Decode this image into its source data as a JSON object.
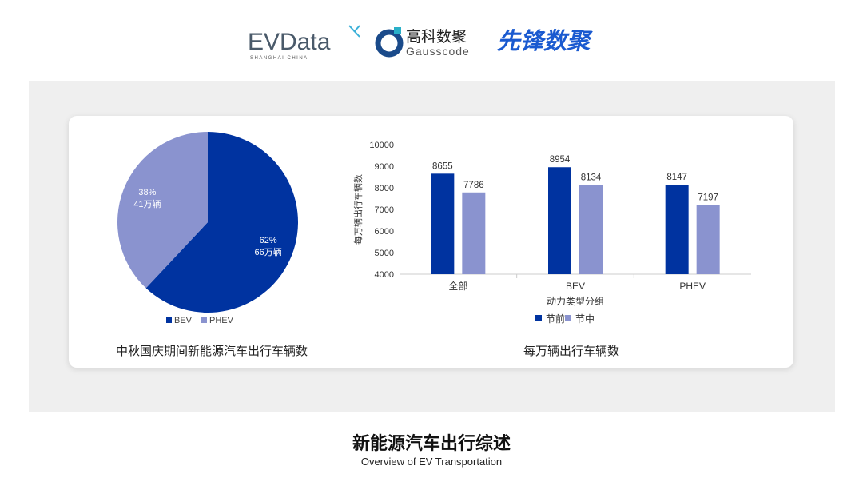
{
  "logos": {
    "evdata": "EVData",
    "evdata_sub": "SHANGHAI CHINA",
    "gauss_cn": "高科数聚",
    "gauss_en": "Gausscode",
    "xianfeng": "先锋数聚"
  },
  "colors": {
    "dark": "#0033a0",
    "light": "#8a93cf"
  },
  "chart_data": [
    {
      "type": "pie",
      "title": "中秋国庆期间新能源汽车出行车辆数",
      "slices": [
        {
          "name": "BEV",
          "percent": 62,
          "value_label": "66万辆",
          "label": "62%"
        },
        {
          "name": "PHEV",
          "percent": 38,
          "value_label": "41万辆",
          "label": "38%"
        }
      ],
      "legend": "bottom"
    },
    {
      "type": "bar",
      "title": "每万辆出行车辆数",
      "xlabel": "动力类型分组",
      "ylabel": "每万辆出行车辆数",
      "categories": [
        "全部",
        "BEV",
        "PHEV"
      ],
      "series": [
        {
          "name": "节前",
          "values": [
            8655,
            8954,
            8147
          ]
        },
        {
          "name": "节中",
          "values": [
            7786,
            8134,
            7197
          ]
        }
      ],
      "ylim": [
        4000,
        10000
      ],
      "yticks": [
        "4000",
        "5000",
        "6000",
        "7000",
        "8000",
        "9000",
        "10000"
      ],
      "grid": false,
      "legend": "bottom"
    }
  ],
  "footer": {
    "title": "新能源汽车出行综述",
    "subtitle": "Overview of EV Transportation"
  }
}
